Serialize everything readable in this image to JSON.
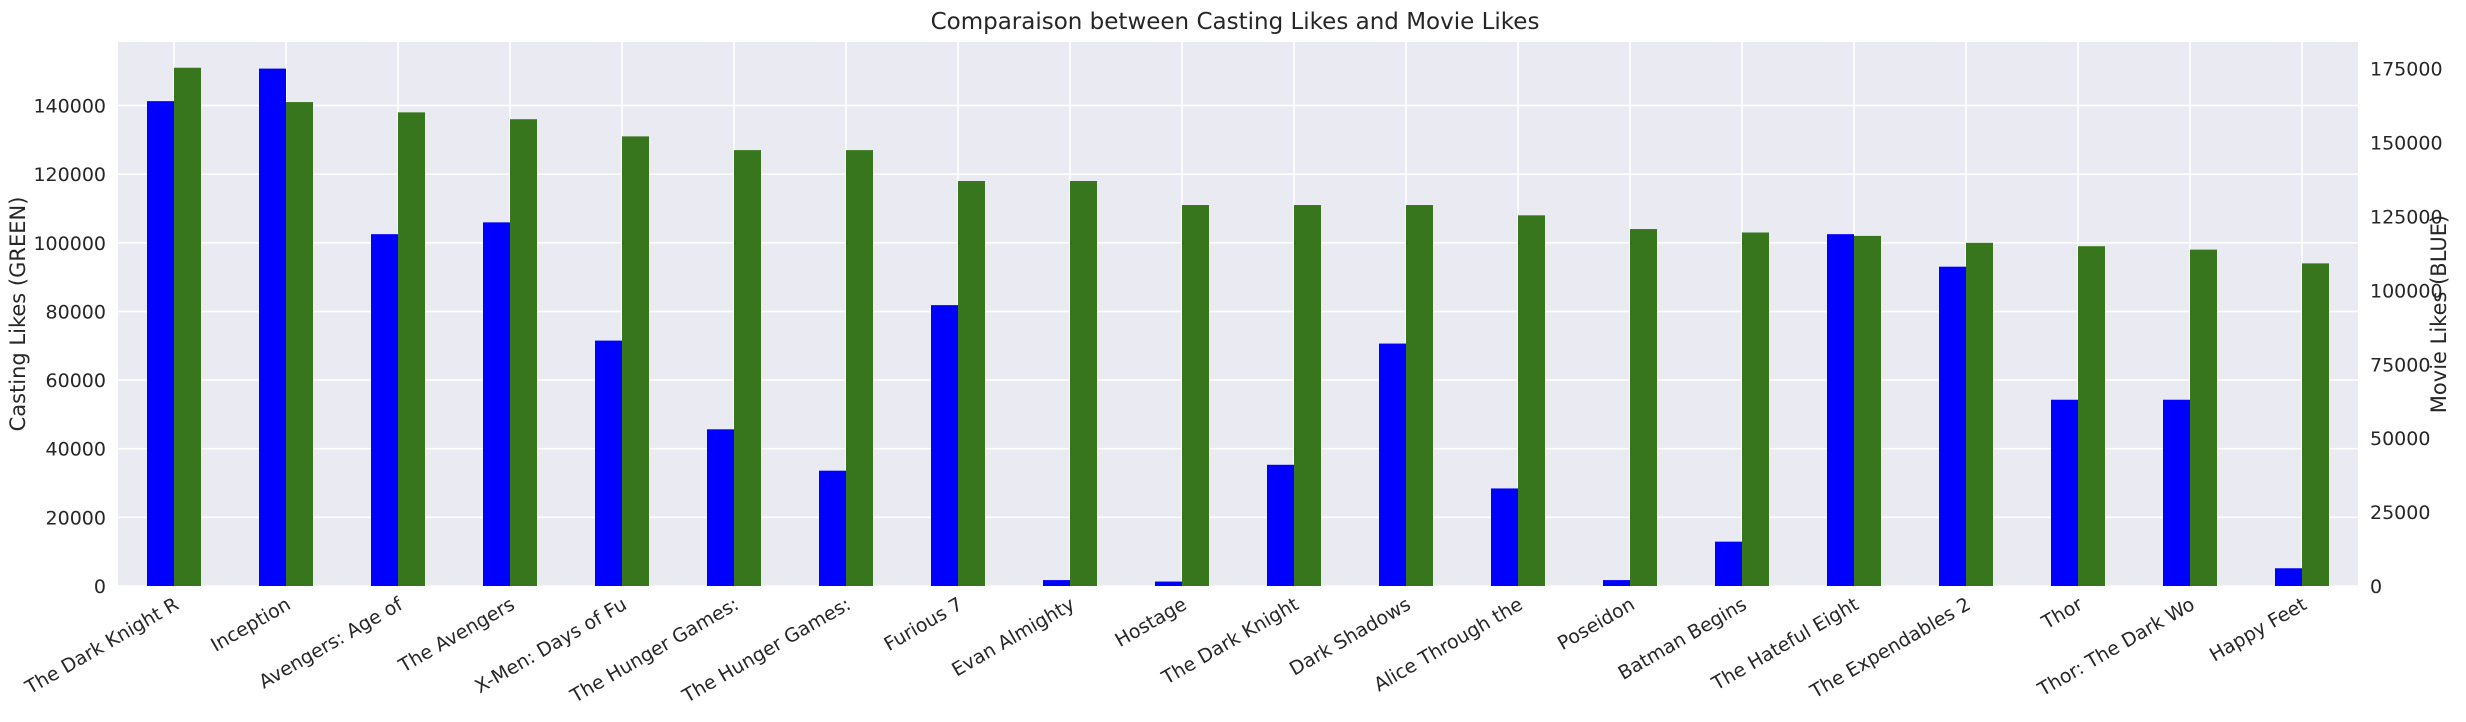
{
  "chart_data": {
    "type": "bar",
    "title": "Comparaison between Casting Likes and Movie Likes",
    "ylabel_left": "Casting Likes (GREEN)",
    "ylabel_right": "Movie Likes (BLUE)",
    "xlabel": "",
    "categories": [
      "The Dark Knight R",
      "Inception",
      "Avengers: Age of",
      "The Avengers",
      "X-Men: Days of Fu",
      "The Hunger Games:",
      "The Hunger Games:",
      "Furious 7",
      "Evan Almighty",
      "Hostage",
      "The Dark Knight",
      "Dark Shadows",
      "Alice Through the",
      "Poseidon",
      "Batman Begins",
      "The Hateful Eight",
      "The Expendables 2",
      "Thor",
      "Thor: The Dark Wo",
      "Happy Feet"
    ],
    "series": [
      {
        "axis": "right",
        "color": "#0000ff",
        "values": [
          164000,
          175000,
          119000,
          123000,
          83000,
          53000,
          39000,
          95000,
          2000,
          1500,
          41000,
          82000,
          33000,
          2000,
          15000,
          119000,
          108000,
          63000,
          63000,
          6000
        ]
      },
      {
        "axis": "left",
        "color": "#38761d",
        "values": [
          151000,
          141000,
          138000,
          136000,
          131000,
          127000,
          127000,
          118000,
          118000,
          111000,
          111000,
          111000,
          108000,
          104000,
          103000,
          102000,
          100000,
          99000,
          98000,
          94000
        ]
      }
    ],
    "ylim_left": [
      0,
      158500
    ],
    "ylim_right": [
      0,
      184000
    ],
    "yticks_left": [
      "0",
      "20000",
      "40000",
      "60000",
      "80000",
      "100000",
      "120000",
      "140000"
    ],
    "yticks_right": [
      "0",
      "25000",
      "50000",
      "75000",
      "100000",
      "125000",
      "150000",
      "175000"
    ],
    "grid": true,
    "background": "#eaeaf2"
  }
}
